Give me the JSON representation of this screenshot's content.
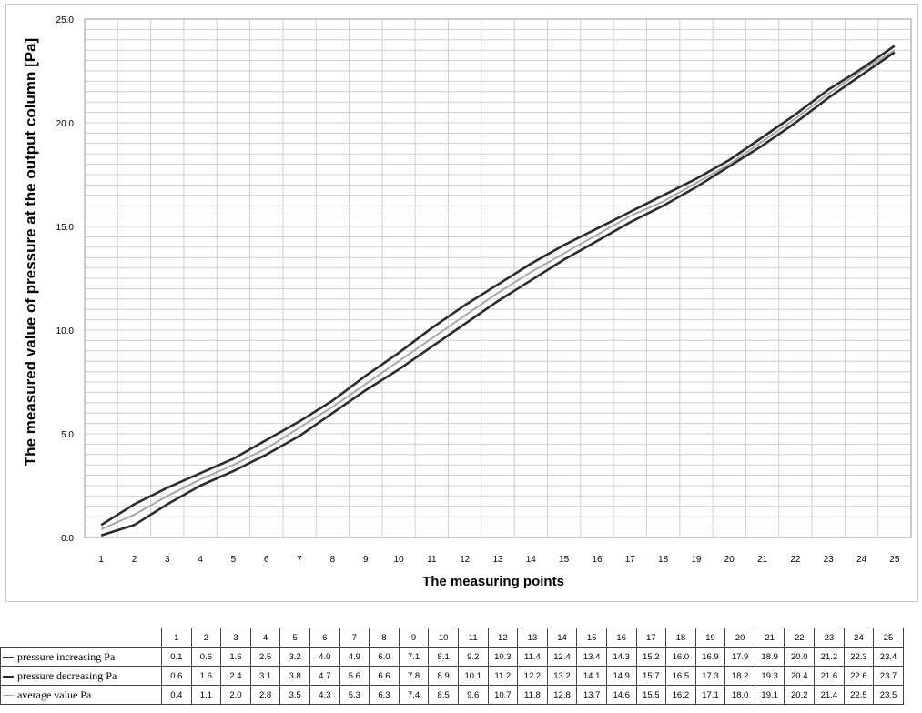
{
  "chart_data": {
    "type": "line",
    "title": "",
    "xlabel": "The measuring points",
    "ylabel": "The measured value of pressure at the output column [Pa]",
    "ylim": [
      0,
      25
    ],
    "yticks": [
      "0.0",
      "5.0",
      "10.0",
      "15.0",
      "20.0",
      "25.0"
    ],
    "grid": true,
    "legend": "table-below",
    "x": [
      1,
      2,
      3,
      4,
      5,
      6,
      7,
      8,
      9,
      10,
      11,
      12,
      13,
      14,
      15,
      16,
      17,
      18,
      19,
      20,
      21,
      22,
      23,
      24,
      25
    ],
    "series": [
      {
        "name": "pressure increasing Pa",
        "color": "#2b2b2b",
        "values": [
          0.1,
          0.6,
          1.6,
          2.5,
          3.2,
          4.0,
          4.9,
          6.0,
          7.1,
          8.1,
          9.2,
          10.3,
          11.4,
          12.4,
          13.4,
          14.3,
          15.2,
          16.0,
          16.9,
          17.9,
          18.9,
          20.0,
          21.2,
          22.3,
          23.4
        ]
      },
      {
        "name": "pressure decreasing Pa",
        "color": "#2b2b2b",
        "values": [
          0.6,
          1.6,
          2.4,
          3.1,
          3.8,
          4.7,
          5.6,
          6.6,
          7.8,
          8.9,
          10.1,
          11.2,
          12.2,
          13.2,
          14.1,
          14.9,
          15.7,
          16.5,
          17.3,
          18.2,
          19.3,
          20.4,
          21.6,
          22.6,
          23.7
        ]
      },
      {
        "name": "average value Pa",
        "color": "#a8a8a8",
        "values": [
          0.4,
          1.1,
          2.0,
          2.8,
          3.5,
          4.3,
          5.3,
          6.3,
          7.4,
          8.5,
          9.6,
          10.7,
          11.8,
          12.8,
          13.7,
          14.6,
          15.5,
          16.2,
          17.1,
          18.0,
          19.1,
          20.2,
          21.4,
          22.5,
          23.5
        ]
      }
    ]
  },
  "table": {
    "headers": [
      "1",
      "2",
      "3",
      "4",
      "5",
      "6",
      "7",
      "8",
      "9",
      "10",
      "11",
      "12",
      "13",
      "14",
      "15",
      "16",
      "17",
      "18",
      "19",
      "20",
      "21",
      "22",
      "23",
      "24",
      "25"
    ],
    "rows": [
      {
        "label": "pressure increasing Pa",
        "cells": [
          "0.1",
          "0.6",
          "1.6",
          "2.5",
          "3.2",
          "4.0",
          "4.9",
          "6.0",
          "7.1",
          "8.1",
          "9.2",
          "10.3",
          "11.4",
          "12.4",
          "13.4",
          "14.3",
          "15.2",
          "16.0",
          "16.9",
          "17.9",
          "18.9",
          "20.0",
          "21.2",
          "22.3",
          "23.4"
        ]
      },
      {
        "label": "pressure decreasing Pa",
        "cells": [
          "0.6",
          "1.6",
          "2.4",
          "3.1",
          "3.8",
          "4.7",
          "5.6",
          "6.6",
          "7.8",
          "8.9",
          "10.1",
          "11.2",
          "12.2",
          "13.2",
          "14.1",
          "14.9",
          "15.7",
          "16.5",
          "17.3",
          "18.2",
          "19.3",
          "20.4",
          "21.6",
          "22.6",
          "23.7"
        ]
      },
      {
        "label": "average value Pa",
        "cells": [
          "0.4",
          "1.1",
          "2.0",
          "2.8",
          "3.5",
          "4.3",
          "5.3",
          "6.3",
          "7.4",
          "8.5",
          "9.6",
          "10.7",
          "11.8",
          "12.8",
          "13.7",
          "14.6",
          "15.5",
          "16.2",
          "17.1",
          "18.0",
          "19.1",
          "20.2",
          "21.4",
          "22.5",
          "23.5"
        ]
      }
    ]
  }
}
